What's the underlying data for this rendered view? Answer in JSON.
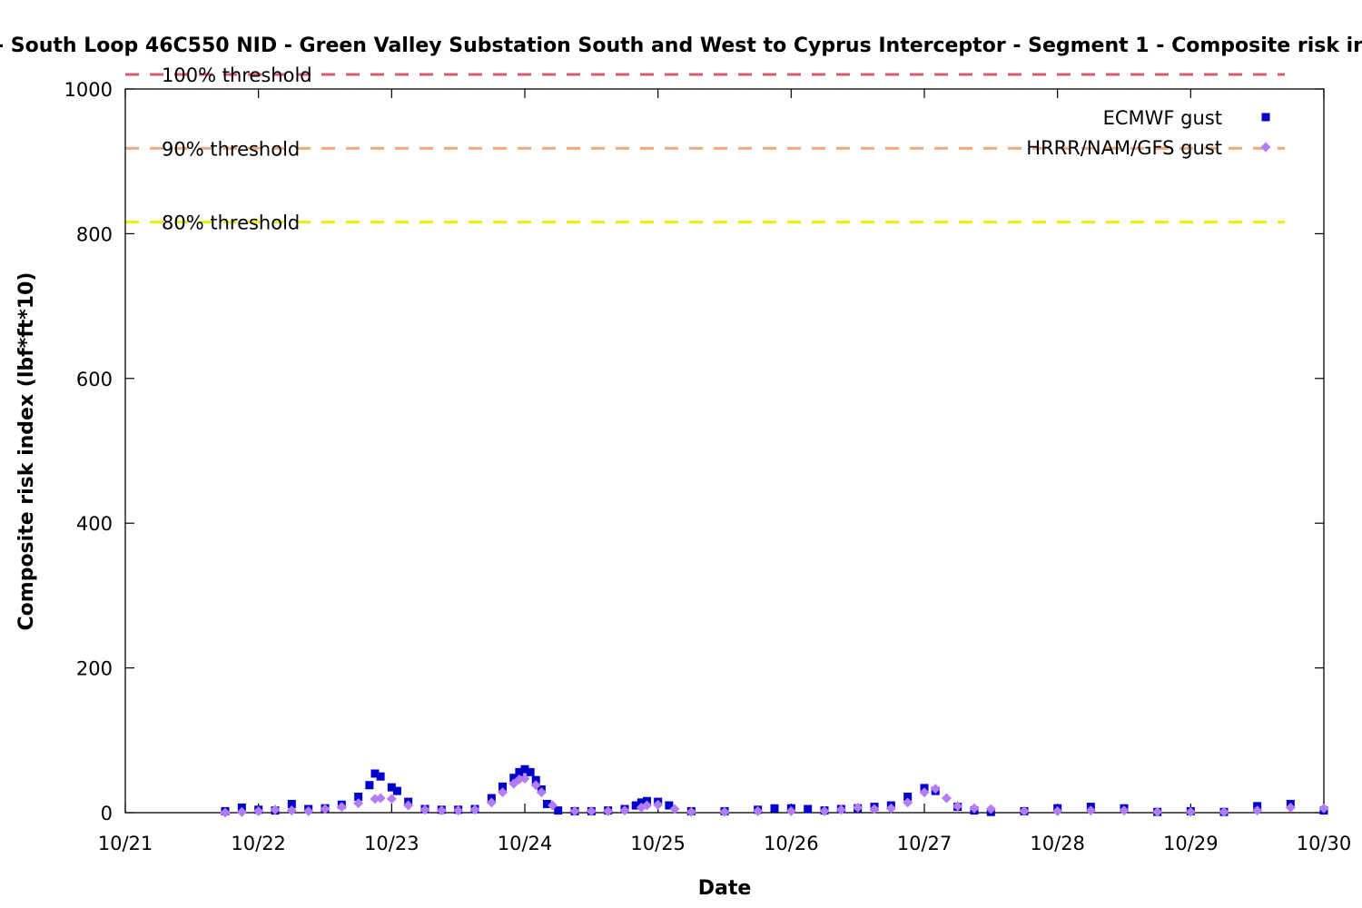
{
  "chart_data": {
    "type": "scatter",
    "title": "- South Loop 46C550 NID - Green Valley Substation South and West to Cyprus Interceptor - Segment 1 - Composite risk index - 1",
    "xlabel": "Date",
    "ylabel": "Composite risk index (lbf*ft*10)",
    "xlim": [
      "10/21 00:00",
      "10/30 00:00"
    ],
    "ylim": [
      0,
      1000
    ],
    "x_ticks": [
      "10/21",
      "10/22",
      "10/23",
      "10/24",
      "10/25",
      "10/26",
      "10/27",
      "10/28",
      "10/29",
      "10/30"
    ],
    "y_ticks": [
      "0",
      "200",
      "400",
      "600",
      "800",
      "1000"
    ],
    "grid": false,
    "legend_position": "top-right",
    "thresholds": [
      {
        "label": "100% threshold",
        "value": 1020,
        "color": "#d65c72"
      },
      {
        "label": "90% threshold",
        "value": 918,
        "color": "#f4a97a"
      },
      {
        "label": "80% threshold",
        "value": 816,
        "color": "#eeee00"
      }
    ],
    "series": [
      {
        "name": "ECMWF gust",
        "marker": "square",
        "color": "#0000cc",
        "points": [
          [
            "10/21 18:00",
            2
          ],
          [
            "10/21 21:00",
            7
          ],
          [
            "10/22 00:00",
            4
          ],
          [
            "10/22 03:00",
            3
          ],
          [
            "10/22 06:00",
            12
          ],
          [
            "10/22 09:00",
            5
          ],
          [
            "10/22 12:00",
            6
          ],
          [
            "10/22 15:00",
            11
          ],
          [
            "10/22 18:00",
            22
          ],
          [
            "10/22 20:00",
            38
          ],
          [
            "10/22 21:00",
            54
          ],
          [
            "10/22 22:00",
            50
          ],
          [
            "10/23 00:00",
            35
          ],
          [
            "10/23 01:00",
            30
          ],
          [
            "10/23 03:00",
            15
          ],
          [
            "10/23 06:00",
            5
          ],
          [
            "10/23 09:00",
            4
          ],
          [
            "10/23 12:00",
            4
          ],
          [
            "10/23 15:00",
            5
          ],
          [
            "10/23 18:00",
            20
          ],
          [
            "10/23 20:00",
            36
          ],
          [
            "10/23 22:00",
            48
          ],
          [
            "10/23 23:00",
            56
          ],
          [
            "10/24 00:00",
            60
          ],
          [
            "10/24 01:00",
            56
          ],
          [
            "10/24 02:00",
            45
          ],
          [
            "10/24 03:00",
            32
          ],
          [
            "10/24 04:00",
            12
          ],
          [
            "10/24 06:00",
            3
          ],
          [
            "10/24 09:00",
            2
          ],
          [
            "10/24 12:00",
            2
          ],
          [
            "10/24 15:00",
            3
          ],
          [
            "10/24 18:00",
            5
          ],
          [
            "10/24 20:00",
            10
          ],
          [
            "10/24 21:00",
            14
          ],
          [
            "10/24 22:00",
            16
          ],
          [
            "10/25 00:00",
            15
          ],
          [
            "10/25 02:00",
            10
          ],
          [
            "10/25 06:00",
            2
          ],
          [
            "10/25 12:00",
            2
          ],
          [
            "10/25 18:00",
            4
          ],
          [
            "10/25 21:00",
            6
          ],
          [
            "10/26 00:00",
            6
          ],
          [
            "10/26 03:00",
            5
          ],
          [
            "10/26 06:00",
            3
          ],
          [
            "10/26 09:00",
            5
          ],
          [
            "10/26 12:00",
            6
          ],
          [
            "10/26 15:00",
            8
          ],
          [
            "10/26 18:00",
            10
          ],
          [
            "10/26 21:00",
            22
          ],
          [
            "10/27 00:00",
            34
          ],
          [
            "10/27 02:00",
            30
          ],
          [
            "10/27 06:00",
            8
          ],
          [
            "10/27 09:00",
            3
          ],
          [
            "10/27 12:00",
            1
          ],
          [
            "10/27 18:00",
            2
          ],
          [
            "10/28 00:00",
            6
          ],
          [
            "10/28 06:00",
            8
          ],
          [
            "10/28 12:00",
            6
          ],
          [
            "10/28 18:00",
            1
          ],
          [
            "10/29 00:00",
            2
          ],
          [
            "10/29 06:00",
            1
          ],
          [
            "10/29 12:00",
            9
          ],
          [
            "10/29 18:00",
            12
          ],
          [
            "10/30 00:00",
            3
          ],
          [
            "10/30 06:00",
            1
          ],
          [
            "10/30 12:00",
            1
          ],
          [
            "10/30 18:00",
            6
          ],
          [
            "10/31 00:00",
            5
          ]
        ]
      },
      {
        "name": "HRRR/NAM/GFS gust",
        "marker": "diamond",
        "color": "#b57cf7",
        "points": [
          [
            "10/21 18:00",
            0
          ],
          [
            "10/21 21:00",
            1
          ],
          [
            "10/22 00:00",
            2
          ],
          [
            "10/22 03:00",
            4
          ],
          [
            "10/22 06:00",
            3
          ],
          [
            "10/22 09:00",
            2
          ],
          [
            "10/22 12:00",
            5
          ],
          [
            "10/22 15:00",
            8
          ],
          [
            "10/22 18:00",
            13
          ],
          [
            "10/22 21:00",
            19
          ],
          [
            "10/22 22:00",
            20
          ],
          [
            "10/23 00:00",
            19
          ],
          [
            "10/23 03:00",
            10
          ],
          [
            "10/23 06:00",
            4
          ],
          [
            "10/23 09:00",
            3
          ],
          [
            "10/23 12:00",
            3
          ],
          [
            "10/23 15:00",
            4
          ],
          [
            "10/23 18:00",
            14
          ],
          [
            "10/23 20:00",
            28
          ],
          [
            "10/23 22:00",
            40
          ],
          [
            "10/23 23:00",
            46
          ],
          [
            "10/24 00:00",
            47
          ],
          [
            "10/24 02:00",
            38
          ],
          [
            "10/24 03:00",
            28
          ],
          [
            "10/24 05:00",
            10
          ],
          [
            "10/24 09:00",
            2
          ],
          [
            "10/24 12:00",
            2
          ],
          [
            "10/24 15:00",
            2
          ],
          [
            "10/24 18:00",
            3
          ],
          [
            "10/24 21:00",
            7
          ],
          [
            "10/24 22:00",
            10
          ],
          [
            "10/25 00:00",
            11
          ],
          [
            "10/25 03:00",
            5
          ],
          [
            "10/25 06:00",
            1
          ],
          [
            "10/25 12:00",
            1
          ],
          [
            "10/25 18:00",
            2
          ],
          [
            "10/26 00:00",
            2
          ],
          [
            "10/26 06:00",
            2
          ],
          [
            "10/26 09:00",
            4
          ],
          [
            "10/26 12:00",
            7
          ],
          [
            "10/26 15:00",
            5
          ],
          [
            "10/26 18:00",
            6
          ],
          [
            "10/26 21:00",
            14
          ],
          [
            "10/27 00:00",
            28
          ],
          [
            "10/27 02:00",
            33
          ],
          [
            "10/27 04:00",
            20
          ],
          [
            "10/27 06:00",
            9
          ],
          [
            "10/27 09:00",
            6
          ],
          [
            "10/27 12:00",
            5
          ],
          [
            "10/27 18:00",
            2
          ],
          [
            "10/28 00:00",
            2
          ],
          [
            "10/28 06:00",
            3
          ],
          [
            "10/28 12:00",
            3
          ],
          [
            "10/28 18:00",
            1
          ],
          [
            "10/29 00:00",
            1
          ],
          [
            "10/29 06:00",
            1
          ],
          [
            "10/29 12:00",
            3
          ],
          [
            "10/29 18:00",
            7
          ],
          [
            "10/30 00:00",
            6
          ],
          [
            "10/30 06:00",
            2
          ],
          [
            "10/30 12:00",
            1
          ],
          [
            "10/30 18:00",
            2
          ],
          [
            "10/31 00:00",
            4
          ]
        ]
      }
    ]
  }
}
